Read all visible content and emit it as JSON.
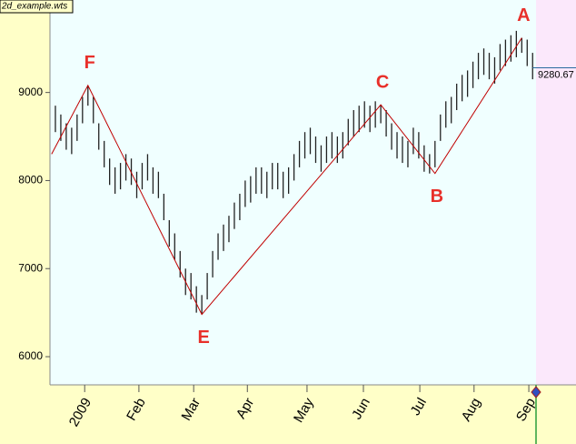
{
  "chart_data": {
    "type": "hilo",
    "title": "2d_example.wts",
    "x": [
      0,
      1,
      2,
      3,
      4,
      5,
      6,
      7,
      8,
      9,
      10,
      11,
      12,
      13,
      14,
      15,
      16,
      17,
      18,
      19,
      20,
      21,
      22,
      23,
      24,
      25,
      26,
      27,
      28,
      29,
      30,
      31,
      32,
      33,
      34,
      35,
      36,
      37,
      38,
      39,
      40,
      41,
      42,
      43,
      44,
      45,
      46,
      47,
      48,
      49,
      50,
      51,
      52,
      53,
      54,
      55,
      56,
      57,
      58,
      59,
      60,
      61,
      62,
      63,
      64,
      65,
      66,
      67,
      68,
      69,
      70,
      71,
      72,
      73,
      74,
      75,
      76,
      77,
      78,
      79,
      80,
      81,
      82,
      83,
      84,
      85,
      86,
      87,
      88
    ],
    "high": [
      8850,
      8750,
      8650,
      8600,
      8750,
      8950,
      9080,
      8950,
      8650,
      8450,
      8250,
      8150,
      8200,
      8300,
      8250,
      8100,
      8200,
      8300,
      8150,
      8100,
      7850,
      7550,
      7400,
      7200,
      7000,
      6950,
      6800,
      6700,
      6950,
      7200,
      7400,
      7500,
      7600,
      7750,
      7850,
      8000,
      8050,
      8150,
      8150,
      8100,
      8200,
      8200,
      8100,
      8150,
      8300,
      8450,
      8550,
      8600,
      8500,
      8400,
      8500,
      8550,
      8500,
      8550,
      8700,
      8800,
      8850,
      8900,
      8850,
      8900,
      8860,
      8800,
      8650,
      8550,
      8500,
      8450,
      8600,
      8550,
      8400,
      8300,
      8450,
      8750,
      8900,
      8950,
      9100,
      9200,
      9250,
      9350,
      9450,
      9500,
      9450,
      9400,
      9550,
      9600,
      9650,
      9700,
      9620,
      9600,
      9450
    ],
    "low": [
      8550,
      8450,
      8350,
      8300,
      8450,
      8650,
      8850,
      8650,
      8350,
      8150,
      7950,
      7850,
      7900,
      8000,
      7950,
      7800,
      7900,
      8000,
      7850,
      7800,
      7550,
      7250,
      7100,
      6900,
      6700,
      6650,
      6500,
      6480,
      6650,
      6900,
      7100,
      7200,
      7300,
      7450,
      7550,
      7700,
      7750,
      7850,
      7850,
      7800,
      7900,
      7900,
      7800,
      7850,
      8000,
      8150,
      8250,
      8300,
      8200,
      8100,
      8200,
      8250,
      8200,
      8250,
      8400,
      8500,
      8550,
      8600,
      8550,
      8600,
      8650,
      8500,
      8350,
      8250,
      8200,
      8150,
      8300,
      8250,
      8100,
      8080,
      8150,
      8450,
      8600,
      8650,
      8800,
      8900,
      8950,
      9050,
      9150,
      9200,
      9150,
      9100,
      9250,
      9300,
      9350,
      9400,
      9450,
      9300,
      9150
    ],
    "color": "#222222",
    "zigzag": {
      "color": "#c00000",
      "x": [
        -0.7,
        6,
        27,
        60,
        70,
        86
      ],
      "values": [
        8300,
        9080,
        6480,
        8860,
        8080,
        9620
      ],
      "labels": [
        null,
        "F",
        "E",
        "C",
        "B",
        "A"
      ],
      "label_color": "#e8302a"
    },
    "last_price": 9280.67,
    "xlim": [
      -1,
      96
    ],
    "ylim": [
      5680,
      10050
    ],
    "yticks": [
      6000,
      7000,
      8000,
      9000
    ],
    "xticks": [
      {
        "value": 5.4,
        "label": "2009"
      },
      {
        "value": 15.4,
        "label": "Feb"
      },
      {
        "value": 25.5,
        "label": "Mar"
      },
      {
        "value": 35.4,
        "label": "Apr"
      },
      {
        "value": 46.4,
        "label": "May"
      },
      {
        "value": 56.8,
        "label": "Jun"
      },
      {
        "value": 67.2,
        "label": "Jul"
      },
      {
        "value": 77.2,
        "label": "Aug"
      },
      {
        "value": 87.3,
        "label": "Sep"
      }
    ]
  }
}
